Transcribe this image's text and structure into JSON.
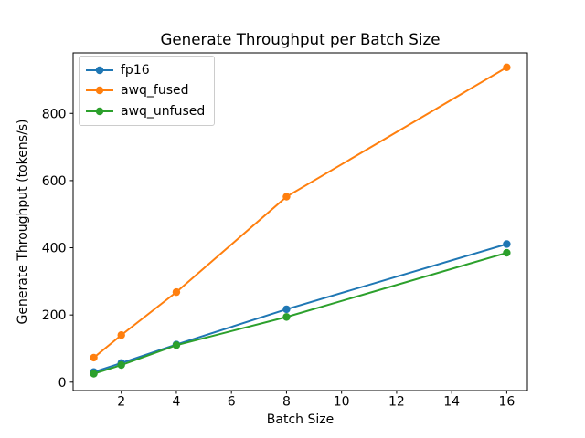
{
  "chart_data": {
    "type": "line",
    "title": "Generate Throughput per Batch Size",
    "xlabel": "Batch Size",
    "ylabel": "Generate Throughput (tokens/s)",
    "x": [
      1,
      2,
      4,
      8,
      16
    ],
    "series": [
      {
        "name": "fp16",
        "color": "#1f77b4",
        "values": [
          30,
          57,
          112,
          217,
          411
        ]
      },
      {
        "name": "awq_fused",
        "color": "#ff7f0e",
        "values": [
          73,
          140,
          268,
          552,
          937
        ]
      },
      {
        "name": "awq_unfused",
        "color": "#2ca02c",
        "values": [
          25,
          51,
          110,
          194,
          385
        ]
      }
    ],
    "xlim": [
      0.25,
      16.75
    ],
    "ylim": [
      -25,
      980
    ],
    "xticks": [
      2,
      4,
      6,
      8,
      10,
      12,
      14,
      16
    ],
    "yticks": [
      0,
      200,
      400,
      600,
      800
    ],
    "grid": false,
    "legend": {
      "position": "upper-left",
      "entries": [
        "fp16",
        "awq_fused",
        "awq_unfused"
      ]
    },
    "marker": "circle",
    "axis_color": "#000000",
    "background": "#ffffff"
  }
}
